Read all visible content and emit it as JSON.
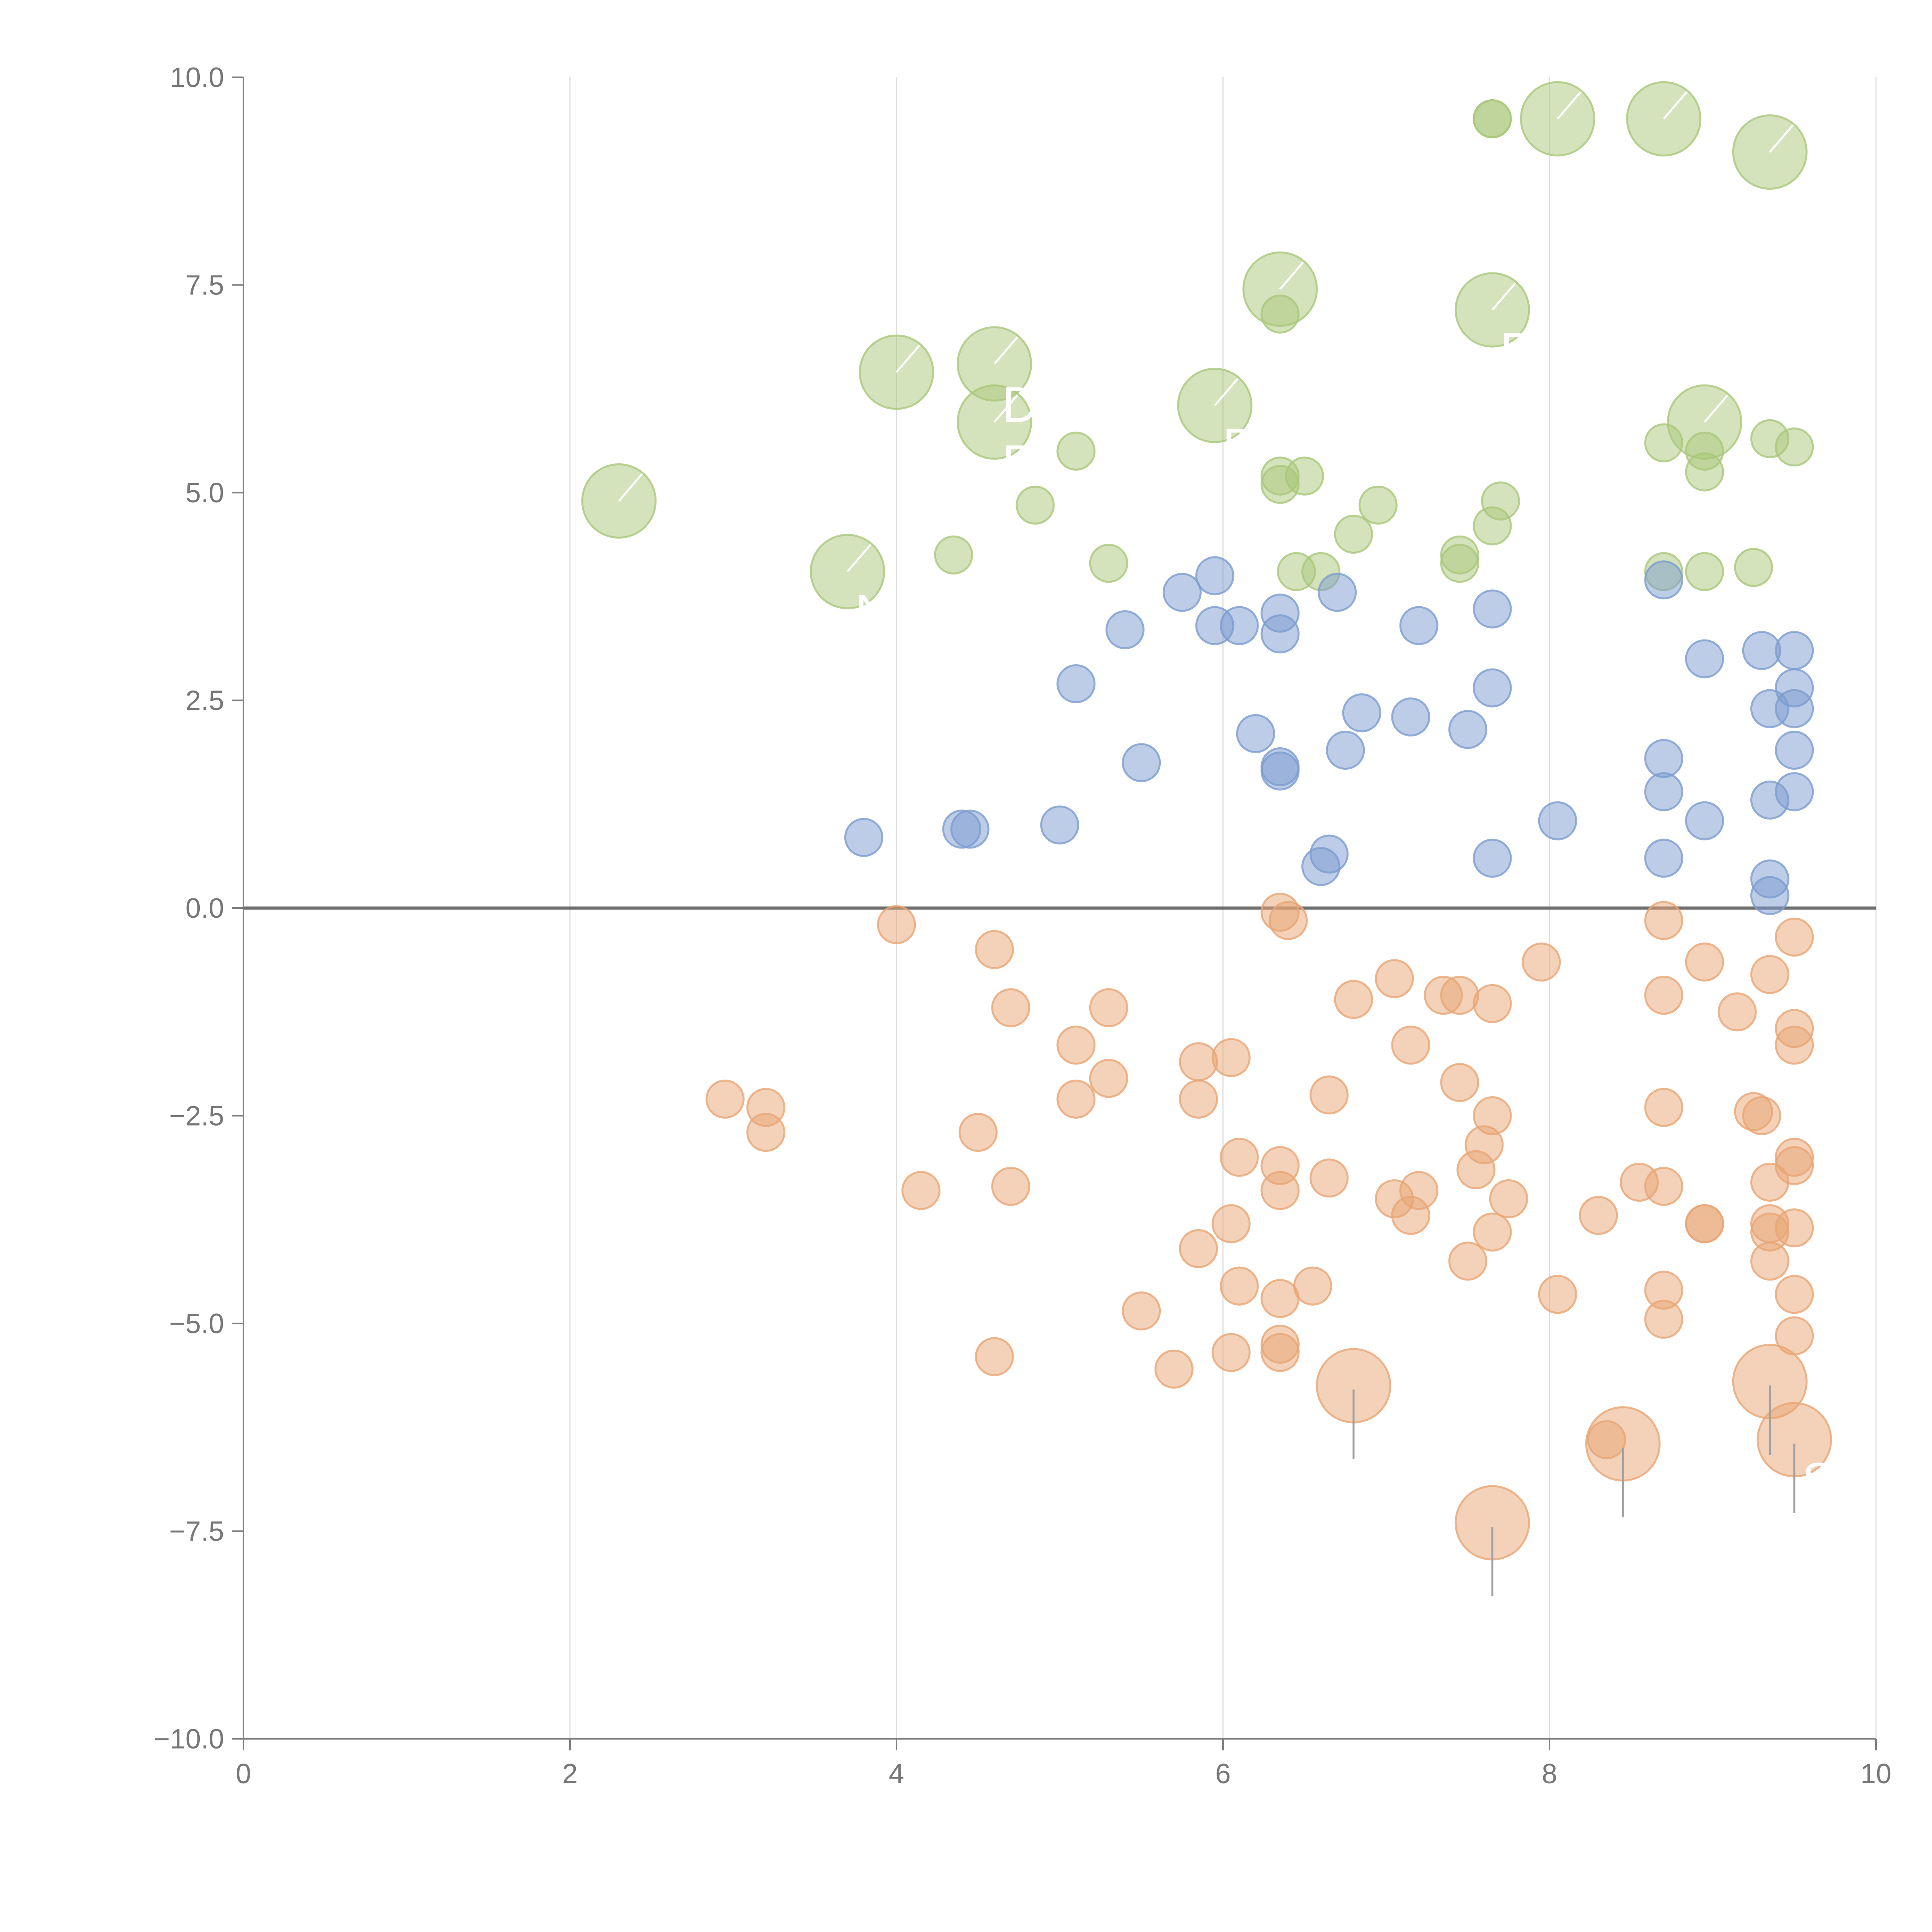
{
  "chart_data": {
    "type": "scatter",
    "title": "",
    "xlabel": "",
    "ylabel": "",
    "xlim": [
      0,
      10
    ],
    "ylim": [
      -10,
      10
    ],
    "xticks": [
      "0",
      "2",
      "4",
      "6",
      "8",
      "10"
    ],
    "yticks": [
      "10.0",
      "7.5",
      "5.0",
      "2.5",
      "0.0",
      "−2.5",
      "−5.0",
      "−7.5",
      "−10.0"
    ],
    "grid": "vertical",
    "reference_line": 0,
    "colors": {
      "green": "#a9c77a",
      "blue": "#7c9ccf",
      "orange": "#e8a574",
      "axis": "#808080",
      "grid": "#dddddd"
    },
    "series": [
      {
        "color": "green",
        "small": [
          [
            7.65,
            9.5
          ],
          [
            7.65,
            9.5
          ],
          [
            6.35,
            7.15
          ],
          [
            5.1,
            5.5
          ],
          [
            4.85,
            4.85
          ],
          [
            4.35,
            4.25
          ],
          [
            5.3,
            4.15
          ],
          [
            6.35,
            5.2
          ],
          [
            6.35,
            5.1
          ],
          [
            6.5,
            5.2
          ],
          [
            6.95,
            4.85
          ],
          [
            6.8,
            4.5
          ],
          [
            6.45,
            4.05
          ],
          [
            6.6,
            4.05
          ],
          [
            7.45,
            4.25
          ],
          [
            7.45,
            4.15
          ],
          [
            7.65,
            4.6
          ],
          [
            7.7,
            4.9
          ],
          [
            8.7,
            5.6
          ],
          [
            8.95,
            5.5
          ],
          [
            8.95,
            5.25
          ],
          [
            9.35,
            5.65
          ],
          [
            9.5,
            5.55
          ],
          [
            8.7,
            4.05
          ],
          [
            8.95,
            4.05
          ],
          [
            9.25,
            4.1
          ]
        ],
        "large": [
          [
            8.05,
            9.5,
            ""
          ],
          [
            8.7,
            9.5,
            ""
          ],
          [
            9.35,
            9.1,
            ""
          ],
          [
            6.35,
            7.45,
            ""
          ],
          [
            7.65,
            7.2,
            "E"
          ],
          [
            4.0,
            6.45,
            ""
          ],
          [
            4.6,
            6.55,
            "D"
          ],
          [
            4.6,
            5.85,
            "E"
          ],
          [
            5.95,
            6.05,
            "D"
          ],
          [
            8.95,
            5.85,
            ""
          ],
          [
            2.3,
            4.9,
            ""
          ],
          [
            3.7,
            4.05,
            "N"
          ]
        ]
      },
      {
        "color": "blue",
        "small": [
          [
            3.8,
            0.85
          ],
          [
            4.4,
            0.95
          ],
          [
            4.45,
            0.95
          ],
          [
            5.0,
            1.0
          ],
          [
            5.1,
            2.7
          ],
          [
            5.4,
            3.35
          ],
          [
            5.5,
            1.75
          ],
          [
            5.75,
            3.8
          ],
          [
            5.95,
            4.0
          ],
          [
            5.95,
            3.4
          ],
          [
            6.1,
            3.4
          ],
          [
            6.2,
            2.1
          ],
          [
            6.35,
            3.55
          ],
          [
            6.35,
            3.3
          ],
          [
            6.35,
            1.7
          ],
          [
            6.35,
            1.65
          ],
          [
            6.7,
            3.8
          ],
          [
            6.75,
            1.9
          ],
          [
            6.85,
            2.35
          ],
          [
            6.65,
            0.65
          ],
          [
            6.6,
            0.5
          ],
          [
            7.15,
            2.3
          ],
          [
            7.2,
            3.4
          ],
          [
            7.5,
            2.15
          ],
          [
            7.65,
            3.6
          ],
          [
            7.65,
            2.65
          ],
          [
            7.65,
            0.6
          ],
          [
            8.05,
            1.05
          ],
          [
            8.7,
            3.95
          ],
          [
            8.7,
            1.8
          ],
          [
            8.7,
            1.4
          ],
          [
            8.7,
            0.6
          ],
          [
            8.95,
            3.0
          ],
          [
            8.95,
            1.05
          ],
          [
            9.3,
            3.1
          ],
          [
            9.35,
            2.4
          ],
          [
            9.35,
            1.3
          ],
          [
            9.35,
            0.35
          ],
          [
            9.35,
            0.15
          ],
          [
            9.5,
            3.1
          ],
          [
            9.5,
            2.65
          ],
          [
            9.5,
            2.4
          ],
          [
            9.5,
            1.9
          ],
          [
            9.5,
            1.4
          ]
        ],
        "large": []
      },
      {
        "color": "orange",
        "small": [
          [
            2.95,
            -2.3
          ],
          [
            3.2,
            -2.4
          ],
          [
            3.2,
            -2.7
          ],
          [
            4.0,
            -0.2
          ],
          [
            4.15,
            -3.4
          ],
          [
            4.5,
            -2.7
          ],
          [
            4.6,
            -0.5
          ],
          [
            4.6,
            -5.4
          ],
          [
            4.7,
            -1.2
          ],
          [
            4.7,
            -3.35
          ],
          [
            5.1,
            -1.65
          ],
          [
            5.1,
            -2.3
          ],
          [
            5.3,
            -1.2
          ],
          [
            5.3,
            -2.05
          ],
          [
            5.5,
            -4.85
          ],
          [
            5.7,
            -5.55
          ],
          [
            5.85,
            -1.85
          ],
          [
            5.85,
            -2.3
          ],
          [
            5.85,
            -4.1
          ],
          [
            6.05,
            -1.8
          ],
          [
            6.05,
            -3.8
          ],
          [
            6.05,
            -5.35
          ],
          [
            6.1,
            -3.0
          ],
          [
            6.1,
            -4.55
          ],
          [
            6.35,
            -0.05
          ],
          [
            6.4,
            -0.15
          ],
          [
            6.35,
            -3.1
          ],
          [
            6.35,
            -3.4
          ],
          [
            6.35,
            -4.7
          ],
          [
            6.35,
            -5.25
          ],
          [
            6.35,
            -5.35
          ],
          [
            6.55,
            -4.55
          ],
          [
            6.65,
            -2.25
          ],
          [
            6.65,
            -3.25
          ],
          [
            6.8,
            -1.1
          ],
          [
            7.05,
            -0.85
          ],
          [
            7.05,
            -3.5
          ],
          [
            7.15,
            -1.65
          ],
          [
            7.15,
            -3.7
          ],
          [
            7.2,
            -3.4
          ],
          [
            7.35,
            -1.05
          ],
          [
            7.45,
            -1.05
          ],
          [
            7.45,
            -2.1
          ],
          [
            7.5,
            -4.25
          ],
          [
            7.55,
            -3.15
          ],
          [
            7.6,
            -2.85
          ],
          [
            7.65,
            -1.15
          ],
          [
            7.65,
            -2.5
          ],
          [
            7.65,
            -3.9
          ],
          [
            7.75,
            -3.5
          ],
          [
            7.95,
            -0.65
          ],
          [
            8.05,
            -4.65
          ],
          [
            8.3,
            -3.7
          ],
          [
            8.35,
            -6.4
          ],
          [
            8.55,
            -3.3
          ],
          [
            8.7,
            -0.15
          ],
          [
            8.7,
            -1.05
          ],
          [
            8.7,
            -2.4
          ],
          [
            8.7,
            -3.35
          ],
          [
            8.7,
            -4.6
          ],
          [
            8.7,
            -4.95
          ],
          [
            8.95,
            -0.65
          ],
          [
            8.95,
            -3.8
          ],
          [
            8.95,
            -3.8
          ],
          [
            9.15,
            -1.25
          ],
          [
            9.25,
            -2.45
          ],
          [
            9.3,
            -2.5
          ],
          [
            9.35,
            -0.8
          ],
          [
            9.35,
            -3.3
          ],
          [
            9.35,
            -3.8
          ],
          [
            9.35,
            -3.9
          ],
          [
            9.35,
            -4.25
          ],
          [
            9.5,
            -0.35
          ],
          [
            9.5,
            -1.45
          ],
          [
            9.5,
            -1.65
          ],
          [
            9.5,
            -3.0
          ],
          [
            9.5,
            -3.1
          ],
          [
            9.5,
            -3.85
          ],
          [
            9.5,
            -4.65
          ],
          [
            9.5,
            -5.15
          ]
        ],
        "large": [
          [
            6.8,
            -5.75,
            ""
          ],
          [
            7.65,
            -7.4,
            ""
          ],
          [
            8.45,
            -6.45,
            ""
          ],
          [
            9.35,
            -5.7,
            ""
          ],
          [
            9.5,
            -6.4,
            "ST"
          ]
        ]
      }
    ]
  }
}
